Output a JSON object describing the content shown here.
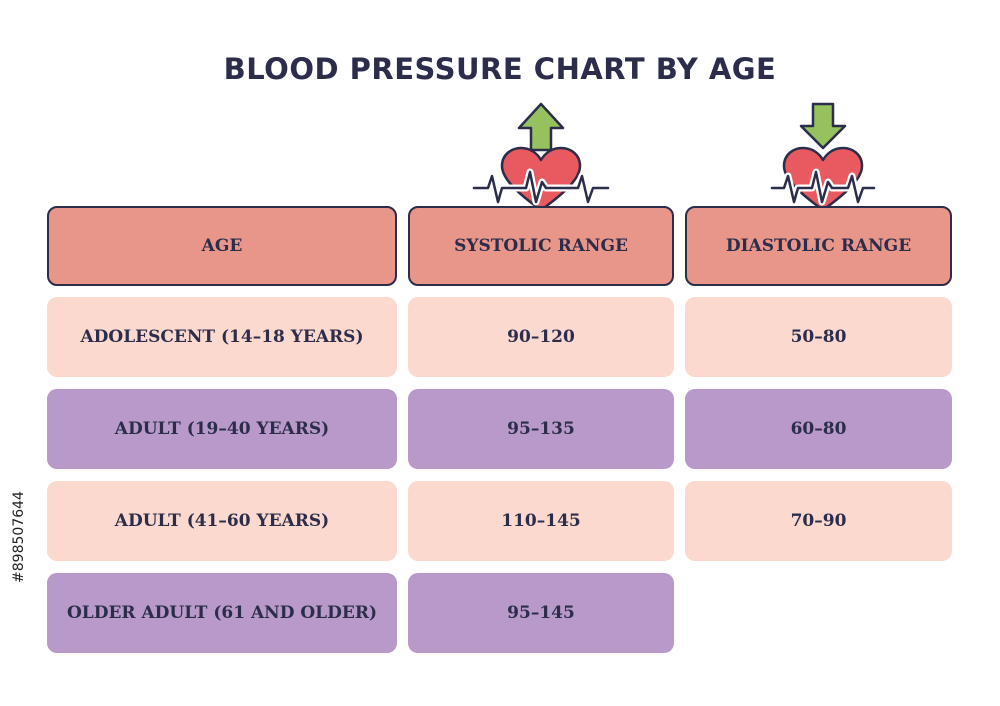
{
  "title": "BLOOD PRESSURE CHART BY AGE",
  "headers": [
    "AGE",
    "SYSTOLIC RANGE",
    "DIASTOLIC RANGE"
  ],
  "rows": [
    {
      "age": "ADOLESCENT (14–18 YEARS)",
      "systolic": "90–120",
      "diastolic": "50–80"
    },
    {
      "age": "ADULT (19–40 YEARS)",
      "systolic": "95–135",
      "diastolic": "60–80"
    },
    {
      "age": "ADULT (41–60 YEARS)",
      "systolic": "110–145",
      "diastolic": "70–90"
    },
    {
      "age": "OLDER ADULT (61 AND OLDER)",
      "systolic": "95–145",
      "diastolic": ""
    }
  ],
  "stock_id": "#898507644",
  "icons": {
    "systolic": [
      "arrow-up-icon",
      "heart-pulse-icon"
    ],
    "diastolic": [
      "arrow-down-icon",
      "heart-pulse-icon"
    ]
  },
  "colors": {
    "header": "#e8958a",
    "row_pink": "#fcd9cf",
    "row_purple": "#b899c9",
    "arrow": "#95c15e",
    "heart": "#e85a5f",
    "text": "#2b2d4a"
  }
}
